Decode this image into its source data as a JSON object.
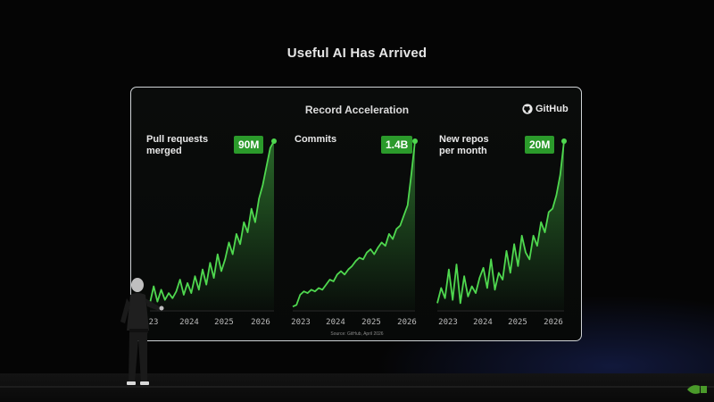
{
  "slide": {
    "title": "Useful AI Has Arrived",
    "panel_title": "Record Acceleration",
    "brand": "GitHub",
    "source": "Source: GitHub, April 2026"
  },
  "colors": {
    "line": "#4fd84f",
    "badge": "#2b9a2b",
    "panel_border": "#cfd3d6"
  },
  "icons": [
    "github-icon",
    "nvidia-icon"
  ],
  "chart_data": [
    {
      "type": "area",
      "title": "Pull requests\nmerged",
      "badge": "90M",
      "x_ticks": [
        "2023",
        "2024",
        "2025",
        "2026"
      ],
      "first_tick_label": "23",
      "x": [
        2023.0,
        2023.1,
        2023.2,
        2023.3,
        2023.4,
        2023.5,
        2023.6,
        2023.7,
        2023.8,
        2023.9,
        2024.0,
        2024.1,
        2024.2,
        2024.3,
        2024.4,
        2024.5,
        2024.6,
        2024.7,
        2024.8,
        2024.9,
        2025.0,
        2025.1,
        2025.2,
        2025.3,
        2025.4,
        2025.5,
        2025.6,
        2025.7,
        2025.8,
        2025.9,
        2026.0,
        2026.1,
        2026.2,
        2026.3
      ],
      "values": [
        4,
        14,
        5,
        12,
        6,
        10,
        7,
        11,
        18,
        9,
        16,
        10,
        20,
        12,
        24,
        15,
        28,
        19,
        33,
        23,
        30,
        40,
        33,
        45,
        39,
        52,
        46,
        60,
        52,
        66,
        74,
        85,
        96,
        100
      ]
    },
    {
      "type": "area",
      "title": "Commits",
      "badge": "1.4B",
      "x_ticks": [
        "2023",
        "2024",
        "2025",
        "2026"
      ],
      "x": [
        2023.0,
        2023.1,
        2023.2,
        2023.3,
        2023.4,
        2023.5,
        2023.6,
        2023.7,
        2023.8,
        2023.9,
        2024.0,
        2024.1,
        2024.2,
        2024.3,
        2024.4,
        2024.5,
        2024.6,
        2024.7,
        2024.8,
        2024.9,
        2025.0,
        2025.1,
        2025.2,
        2025.3,
        2025.4,
        2025.5,
        2025.6,
        2025.7,
        2025.8,
        2025.9,
        2026.0,
        2026.1,
        2026.2,
        2026.3
      ],
      "values": [
        2,
        3,
        9,
        11,
        10,
        12,
        11,
        13,
        12,
        15,
        18,
        17,
        21,
        23,
        21,
        24,
        26,
        29,
        31,
        30,
        34,
        36,
        33,
        37,
        40,
        38,
        45,
        42,
        48,
        50,
        56,
        62,
        80,
        100
      ]
    },
    {
      "type": "area",
      "title": "New repos\nper month",
      "badge": "20M",
      "x_ticks": [
        "2023",
        "2024",
        "2025",
        "2026"
      ],
      "x": [
        2023.0,
        2023.1,
        2023.2,
        2023.3,
        2023.4,
        2023.5,
        2023.6,
        2023.7,
        2023.8,
        2023.9,
        2024.0,
        2024.1,
        2024.2,
        2024.3,
        2024.4,
        2024.5,
        2024.6,
        2024.7,
        2024.8,
        2024.9,
        2025.0,
        2025.1,
        2025.2,
        2025.3,
        2025.4,
        2025.5,
        2025.6,
        2025.7,
        2025.8,
        2025.9,
        2026.0,
        2026.1,
        2026.2,
        2026.3
      ],
      "values": [
        4,
        13,
        7,
        24,
        6,
        27,
        4,
        20,
        8,
        14,
        10,
        19,
        25,
        13,
        30,
        12,
        22,
        18,
        35,
        22,
        39,
        26,
        44,
        34,
        30,
        44,
        38,
        52,
        46,
        58,
        60,
        68,
        80,
        100
      ]
    }
  ]
}
